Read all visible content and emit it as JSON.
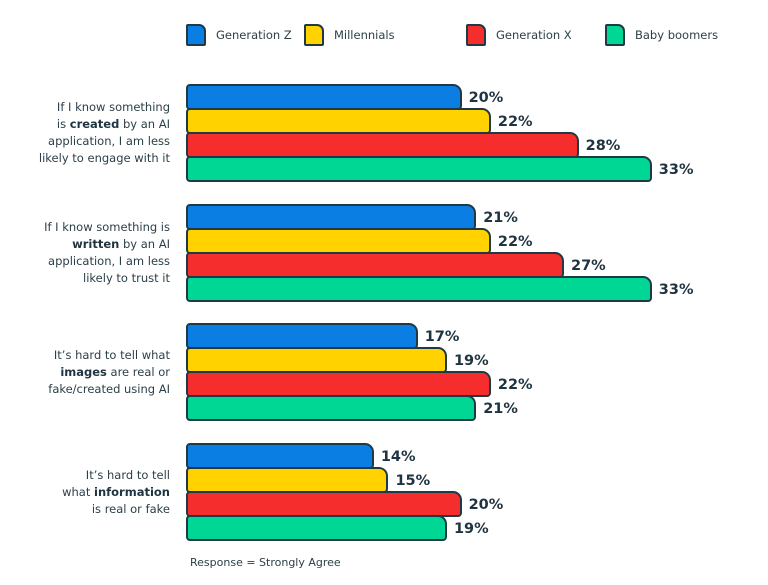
{
  "chart_data": {
    "type": "bar",
    "orientation": "horizontal",
    "title": "",
    "xlabel": "",
    "ylabel": "",
    "grid": false,
    "legend_position": "top",
    "series": [
      {
        "name": "Generation Z",
        "color": "#0a7ee3",
        "values": [
          20,
          21,
          17,
          14
        ]
      },
      {
        "name": "Millennials",
        "color": "#ffd200",
        "values": [
          22,
          22,
          19,
          15
        ]
      },
      {
        "name": "Generation X",
        "color": "#f62d2d",
        "values": [
          28,
          27,
          22,
          20
        ]
      },
      {
        "name": "Baby boomers",
        "color": "#00d795",
        "values": [
          33,
          33,
          21,
          19
        ]
      }
    ],
    "categories": [
      [
        [
          {
            "t": "If I know something",
            "b": false
          }
        ],
        [
          {
            "t": "is ",
            "b": false
          },
          {
            "t": "created",
            "b": true
          },
          {
            "t": " by an AI",
            "b": false
          }
        ],
        [
          {
            "t": "application, I am less",
            "b": false
          }
        ],
        [
          {
            "t": "likely to engage with it",
            "b": false
          }
        ]
      ],
      [
        [
          {
            "t": "If I know something is",
            "b": false
          }
        ],
        [
          {
            "t": "written",
            "b": true
          },
          {
            "t": " by an AI",
            "b": false
          }
        ],
        [
          {
            "t": "application, I am less",
            "b": false
          }
        ],
        [
          {
            "t": "likely to trust it",
            "b": false
          }
        ]
      ],
      [
        [
          {
            "t": "It’s hard to tell what",
            "b": false
          }
        ],
        [
          {
            "t": "images",
            "b": true
          },
          {
            "t": " are real or",
            "b": false
          }
        ],
        [
          {
            "t": "fake/created using AI",
            "b": false
          }
        ]
      ],
      [
        [
          {
            "t": "It’s hard to tell",
            "b": false
          }
        ],
        [
          {
            "t": "what ",
            "b": false
          },
          {
            "t": "information",
            "b": true
          }
        ],
        [
          {
            "t": "is real or fake",
            "b": false
          }
        ]
      ]
    ],
    "value_suffix": "%",
    "footnote": "Response = Strongly Agree"
  }
}
